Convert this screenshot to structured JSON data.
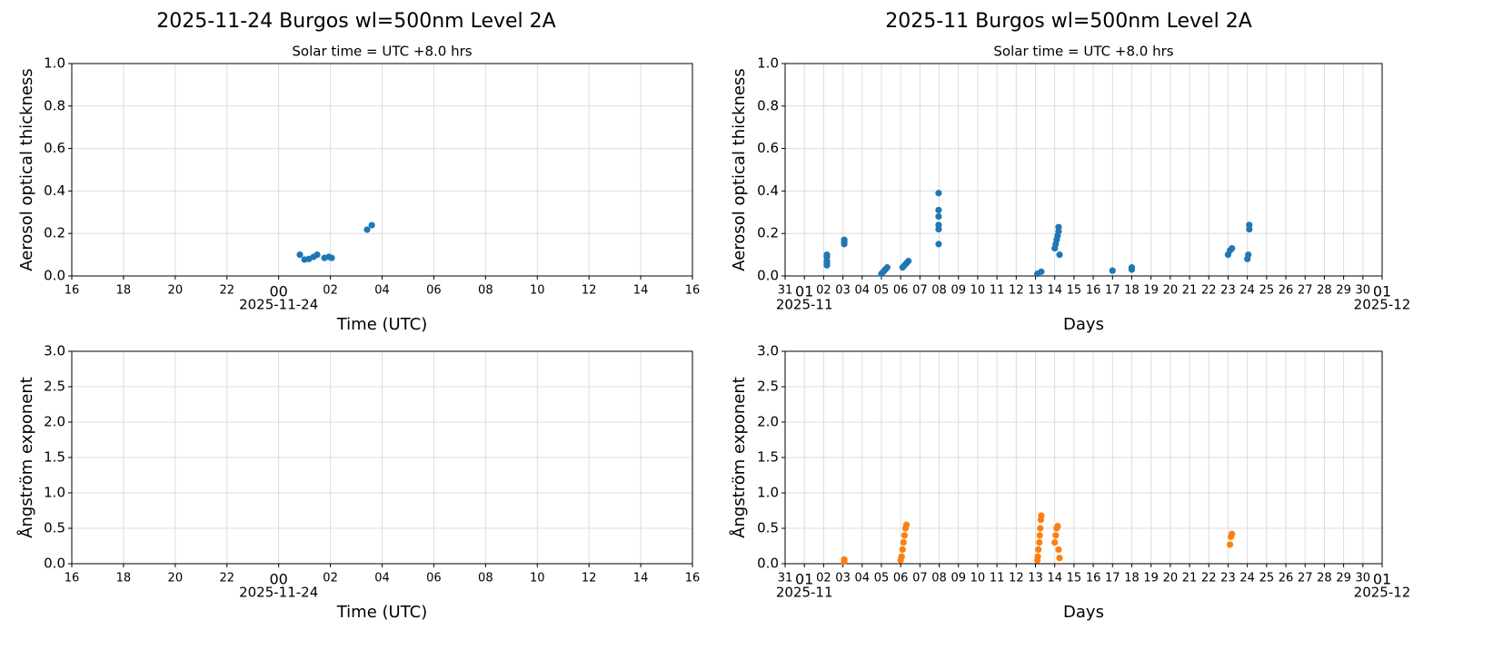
{
  "chart_data": [
    {
      "type": "scatter",
      "title": "2025-11-24  Burgos  wl=500nm  Level 2A",
      "subtitle": "Solar time = UTC +8.0 hrs",
      "x_label": "Time (UTC)",
      "y_label": "Aerosol optical thickness",
      "color": "#1f77b4",
      "grid": true,
      "x": [
        0.82,
        1.0,
        1.17,
        1.35,
        1.49,
        1.77,
        1.94,
        2.05,
        3.42,
        3.6
      ],
      "values": [
        0.1,
        0.077,
        0.08,
        0.09,
        0.1,
        0.085,
        0.09,
        0.085,
        0.218,
        0.239
      ],
      "xlim": [
        -8,
        16
      ],
      "xticks": [
        {
          "value": -8,
          "label": "16"
        },
        {
          "value": -6,
          "label": "18"
        },
        {
          "value": -4,
          "label": "20"
        },
        {
          "value": -2,
          "label": "22"
        },
        {
          "value": 0,
          "label": "00"
        },
        {
          "value": 2,
          "label": "02"
        },
        {
          "value": 4,
          "label": "04"
        },
        {
          "value": 6,
          "label": "06"
        },
        {
          "value": 8,
          "label": "08"
        },
        10,
        12,
        14,
        16
      ],
      "x_date_labels": [
        {
          "value": 0,
          "label": "2025-11-24"
        }
      ],
      "ylim": [
        0,
        1
      ],
      "yticks": [
        {
          "value": 0,
          "label": "0.0"
        },
        0.2,
        0.4,
        0.6,
        0.8,
        {
          "value": 1,
          "label": "1.0"
        }
      ]
    },
    {
      "type": "scatter",
      "title": "2025-11  Burgos  wl=500nm  Level 2A",
      "subtitle": "Solar time = UTC +8.0 hrs",
      "x_label": "Days",
      "y_label": "Aerosol optical thickness",
      "color": "#1f77b4",
      "grid": true,
      "x": [
        2.17,
        2.17,
        2.17,
        2.17,
        2.17,
        3.07,
        3.07,
        3.07,
        5.0,
        5.1,
        5.2,
        5.3,
        6.1,
        6.2,
        6.3,
        6.4,
        7.97,
        7.97,
        7.97,
        7.97,
        7.97,
        7.97,
        13.1,
        13.3,
        14.0,
        14.05,
        14.1,
        14.15,
        14.2,
        14.2,
        14.25,
        17.0,
        18.0,
        18.0,
        23.0,
        23.1,
        23.2,
        24.0,
        24.05,
        24.1,
        24.1
      ],
      "values": [
        0.05,
        0.06,
        0.07,
        0.09,
        0.1,
        0.15,
        0.16,
        0.17,
        0.01,
        0.02,
        0.03,
        0.04,
        0.04,
        0.05,
        0.06,
        0.07,
        0.15,
        0.22,
        0.24,
        0.28,
        0.31,
        0.39,
        0.01,
        0.02,
        0.13,
        0.15,
        0.17,
        0.19,
        0.21,
        0.23,
        0.1,
        0.025,
        0.03,
        0.04,
        0.1,
        0.12,
        0.13,
        0.08,
        0.1,
        0.22,
        0.24
      ],
      "xlim": [
        0,
        31
      ],
      "xticks": [
        {
          "value": 0,
          "label": "31"
        },
        {
          "value": 1,
          "label": "01"
        },
        {
          "value": 2,
          "label": "02"
        },
        {
          "value": 3,
          "label": "03"
        },
        {
          "value": 4,
          "label": "04"
        },
        {
          "value": 5,
          "label": "05"
        },
        {
          "value": 6,
          "label": "06"
        },
        {
          "value": 7,
          "label": "07"
        },
        {
          "value": 8,
          "label": "08"
        },
        {
          "value": 9,
          "label": "09"
        },
        10,
        11,
        12,
        13,
        14,
        15,
        16,
        17,
        18,
        19,
        20,
        21,
        22,
        23,
        24,
        25,
        26,
        27,
        28,
        29,
        30,
        {
          "value": 31,
          "label": "01"
        }
      ],
      "x_date_labels": [
        {
          "value": 1,
          "label": "2025-11"
        },
        {
          "value": 31,
          "label": "2025-12"
        }
      ],
      "ylim": [
        0,
        1
      ],
      "yticks": [
        {
          "value": 0,
          "label": "0.0"
        },
        0.2,
        0.4,
        0.6,
        0.8,
        {
          "value": 1,
          "label": "1.0"
        }
      ]
    },
    {
      "type": "scatter",
      "x_label": "Time (UTC)",
      "y_label": "Ångström exponent",
      "color": "#ff7f0e",
      "grid": true,
      "x": [],
      "values": [],
      "xlim": [
        -8,
        16
      ],
      "xticks": [
        {
          "value": -8,
          "label": "16"
        },
        {
          "value": -6,
          "label": "18"
        },
        {
          "value": -4,
          "label": "20"
        },
        {
          "value": -2,
          "label": "22"
        },
        {
          "value": 0,
          "label": "00"
        },
        {
          "value": 2,
          "label": "02"
        },
        {
          "value": 4,
          "label": "04"
        },
        {
          "value": 6,
          "label": "06"
        },
        {
          "value": 8,
          "label": "08"
        },
        10,
        12,
        14,
        16
      ],
      "x_date_labels": [
        {
          "value": 0,
          "label": "2025-11-24"
        }
      ],
      "ylim": [
        0,
        3
      ],
      "yticks": [
        {
          "value": 0,
          "label": "0.0"
        },
        0.5,
        {
          "value": 1,
          "label": "1.0"
        },
        1.5,
        {
          "value": 2,
          "label": "2.0"
        },
        2.5,
        {
          "value": 3,
          "label": "3.0"
        }
      ]
    },
    {
      "type": "scatter",
      "x_label": "Days",
      "y_label": "Ångström exponent",
      "color": "#ff7f0e",
      "grid": true,
      "x": [
        3.07,
        3.07,
        6.0,
        6.05,
        6.1,
        6.15,
        6.2,
        6.25,
        6.3,
        13.1,
        13.12,
        13.15,
        13.2,
        13.22,
        13.25,
        13.28,
        13.3,
        14.0,
        14.05,
        14.1,
        14.15,
        14.2,
        14.25,
        23.1,
        23.15,
        23.2
      ],
      "values": [
        0.03,
        0.06,
        0.05,
        0.1,
        0.2,
        0.3,
        0.4,
        0.5,
        0.55,
        0.05,
        0.1,
        0.2,
        0.3,
        0.4,
        0.5,
        0.62,
        0.68,
        0.3,
        0.4,
        0.5,
        0.53,
        0.2,
        0.08,
        0.27,
        0.38,
        0.42
      ],
      "xlim": [
        0,
        31
      ],
      "xticks": [
        {
          "value": 0,
          "label": "31"
        },
        {
          "value": 1,
          "label": "01"
        },
        {
          "value": 2,
          "label": "02"
        },
        {
          "value": 3,
          "label": "03"
        },
        {
          "value": 4,
          "label": "04"
        },
        {
          "value": 5,
          "label": "05"
        },
        {
          "value": 6,
          "label": "06"
        },
        {
          "value": 7,
          "label": "07"
        },
        {
          "value": 8,
          "label": "08"
        },
        {
          "value": 9,
          "label": "09"
        },
        10,
        11,
        12,
        13,
        14,
        15,
        16,
        17,
        18,
        19,
        20,
        21,
        22,
        23,
        24,
        25,
        26,
        27,
        28,
        29,
        30,
        {
          "value": 31,
          "label": "01"
        }
      ],
      "x_date_labels": [
        {
          "value": 1,
          "label": "2025-11"
        },
        {
          "value": 31,
          "label": "2025-12"
        }
      ],
      "ylim": [
        0,
        3
      ],
      "yticks": [
        {
          "value": 0,
          "label": "0.0"
        },
        0.5,
        {
          "value": 1,
          "label": "1.0"
        },
        1.5,
        {
          "value": 2,
          "label": "2.0"
        },
        2.5,
        {
          "value": 3,
          "label": "3.0"
        }
      ]
    }
  ]
}
